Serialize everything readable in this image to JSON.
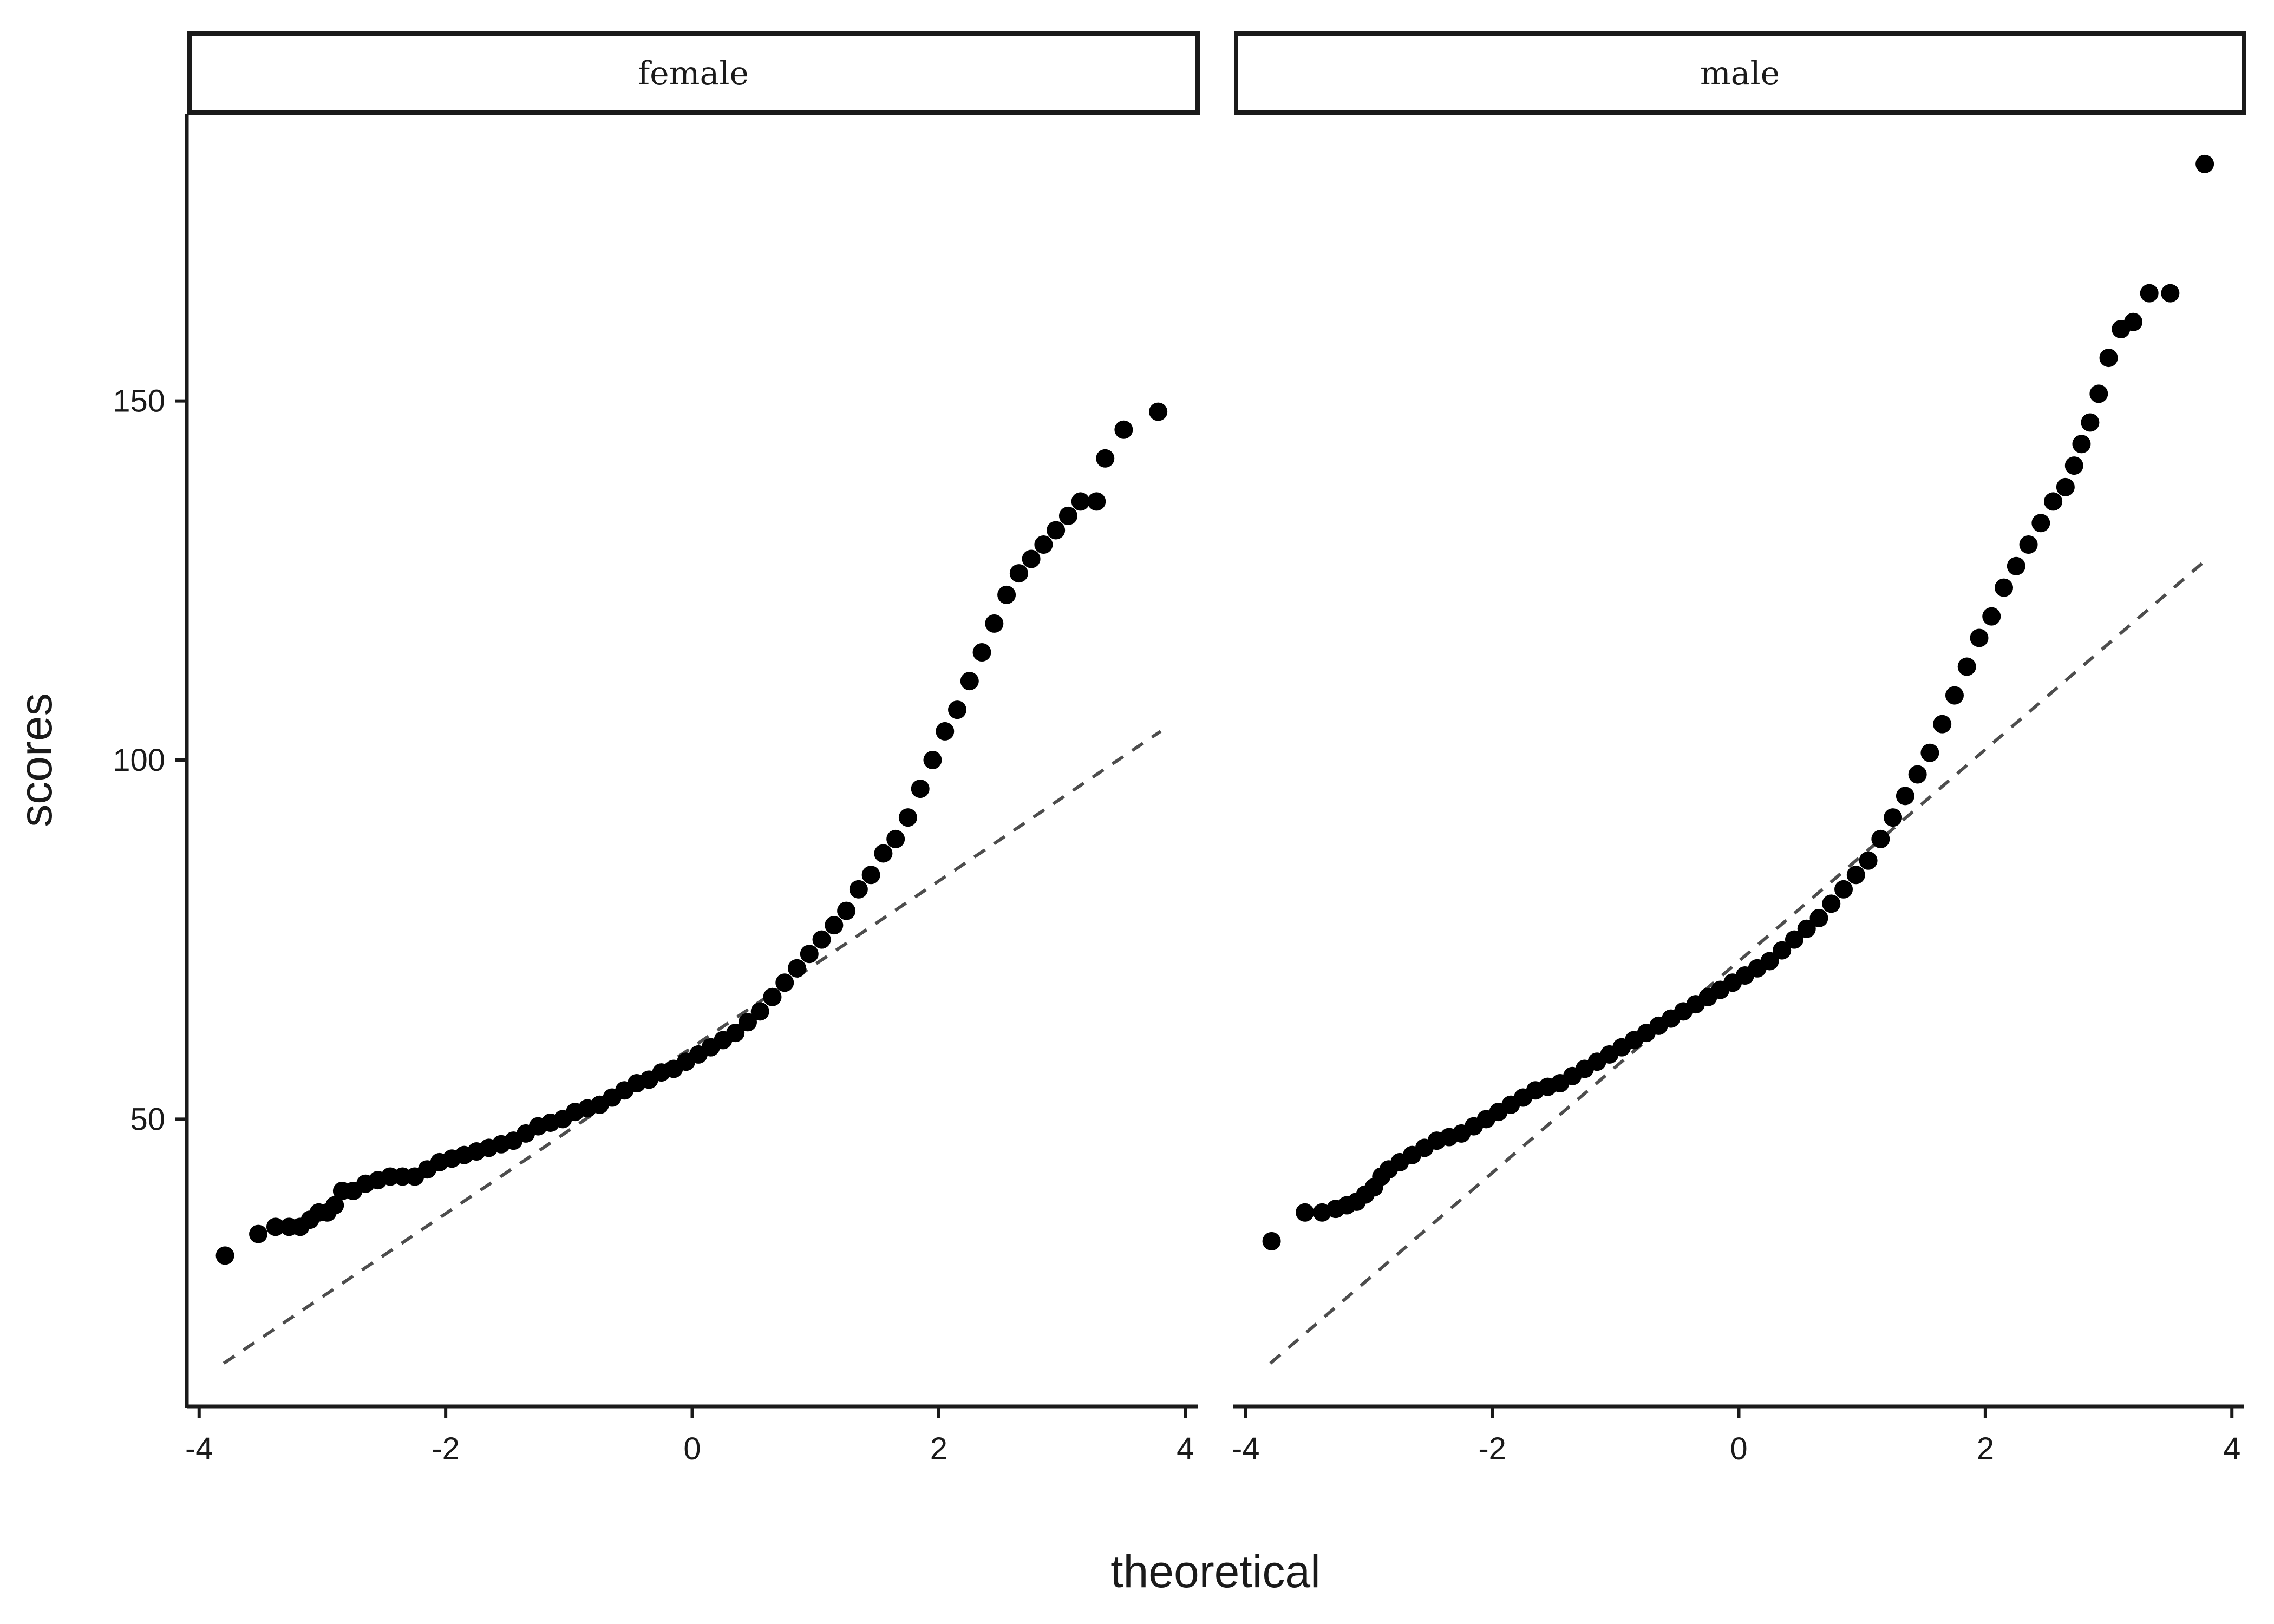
{
  "chart_data": {
    "type": "scatter",
    "subtype": "qq-plot",
    "xlabel": "theoretical",
    "ylabel": "scores",
    "xlim": [
      -4.1,
      4.1
    ],
    "ylim": [
      10,
      190
    ],
    "x_ticks": [
      -4,
      -2,
      0,
      2,
      4
    ],
    "x_tick_labels": [
      "-4",
      "-2",
      "0",
      "2",
      "4"
    ],
    "y_ticks": [
      50,
      100,
      150
    ],
    "y_tick_labels": [
      "50",
      "100",
      "150"
    ],
    "grid": false,
    "panels": [
      {
        "name": "female",
        "strip_label": "female",
        "reference_line": {
          "x": [
            -3.8,
            3.8
          ],
          "y": [
            16,
            104
          ]
        },
        "points": [
          [
            -3.79,
            31
          ],
          [
            -3.52,
            34
          ],
          [
            -3.38,
            35
          ],
          [
            -3.27,
            35
          ],
          [
            -3.18,
            35
          ],
          [
            -3.1,
            36
          ],
          [
            -3.03,
            37
          ],
          [
            -2.96,
            37
          ],
          [
            -2.9,
            38
          ],
          [
            -2.84,
            40
          ],
          [
            -2.75,
            40
          ],
          [
            -2.65,
            41
          ],
          [
            -2.55,
            41.5
          ],
          [
            -2.45,
            42
          ],
          [
            -2.35,
            42
          ],
          [
            -2.25,
            42
          ],
          [
            -2.15,
            43
          ],
          [
            -2.05,
            44
          ],
          [
            -1.95,
            44.5
          ],
          [
            -1.85,
            45
          ],
          [
            -1.75,
            45.5
          ],
          [
            -1.65,
            46
          ],
          [
            -1.55,
            46.5
          ],
          [
            -1.45,
            47
          ],
          [
            -1.35,
            48
          ],
          [
            -1.25,
            49
          ],
          [
            -1.15,
            49.5
          ],
          [
            -1.05,
            50
          ],
          [
            -0.95,
            51
          ],
          [
            -0.85,
            51.5
          ],
          [
            -0.75,
            52
          ],
          [
            -0.65,
            53
          ],
          [
            -0.55,
            54
          ],
          [
            -0.45,
            55
          ],
          [
            -0.35,
            55.5
          ],
          [
            -0.25,
            56.5
          ],
          [
            -0.15,
            57
          ],
          [
            -0.05,
            58
          ],
          [
            0.05,
            59
          ],
          [
            0.15,
            60
          ],
          [
            0.25,
            61
          ],
          [
            0.35,
            62
          ],
          [
            0.45,
            63.5
          ],
          [
            0.55,
            65
          ],
          [
            0.65,
            67
          ],
          [
            0.75,
            69
          ],
          [
            0.85,
            71
          ],
          [
            0.95,
            73
          ],
          [
            1.05,
            75
          ],
          [
            1.15,
            77
          ],
          [
            1.25,
            79
          ],
          [
            1.35,
            82
          ],
          [
            1.45,
            84
          ],
          [
            1.55,
            87
          ],
          [
            1.65,
            89
          ],
          [
            1.75,
            92
          ],
          [
            1.85,
            96
          ],
          [
            1.95,
            100
          ],
          [
            2.05,
            104
          ],
          [
            2.15,
            107
          ],
          [
            2.25,
            111
          ],
          [
            2.35,
            115
          ],
          [
            2.45,
            119
          ],
          [
            2.55,
            123
          ],
          [
            2.65,
            126
          ],
          [
            2.75,
            128
          ],
          [
            2.85,
            130
          ],
          [
            2.95,
            132
          ],
          [
            3.05,
            134
          ],
          [
            3.15,
            136
          ],
          [
            3.28,
            136
          ],
          [
            3.35,
            142
          ],
          [
            3.5,
            146
          ],
          [
            3.78,
            148.5
          ]
        ]
      },
      {
        "name": "male",
        "strip_label": "male",
        "reference_line": {
          "x": [
            -3.8,
            3.8
          ],
          "y": [
            16,
            128
          ]
        },
        "points": [
          [
            -3.79,
            33
          ],
          [
            -3.52,
            37
          ],
          [
            -3.38,
            37
          ],
          [
            -3.27,
            37.5
          ],
          [
            -3.18,
            38
          ],
          [
            -3.1,
            38.5
          ],
          [
            -3.03,
            39.5
          ],
          [
            -2.96,
            40.5
          ],
          [
            -2.9,
            42
          ],
          [
            -2.84,
            43
          ],
          [
            -2.75,
            44
          ],
          [
            -2.65,
            45
          ],
          [
            -2.55,
            46
          ],
          [
            -2.45,
            47
          ],
          [
            -2.35,
            47.5
          ],
          [
            -2.25,
            48
          ],
          [
            -2.15,
            49
          ],
          [
            -2.05,
            50
          ],
          [
            -1.95,
            51
          ],
          [
            -1.85,
            52
          ],
          [
            -1.75,
            53
          ],
          [
            -1.65,
            54
          ],
          [
            -1.55,
            54.5
          ],
          [
            -1.45,
            55
          ],
          [
            -1.35,
            56
          ],
          [
            -1.25,
            57
          ],
          [
            -1.15,
            58
          ],
          [
            -1.05,
            59
          ],
          [
            -0.95,
            60
          ],
          [
            -0.85,
            61
          ],
          [
            -0.75,
            62
          ],
          [
            -0.65,
            63
          ],
          [
            -0.55,
            64
          ],
          [
            -0.45,
            65
          ],
          [
            -0.35,
            66
          ],
          [
            -0.25,
            67
          ],
          [
            -0.15,
            68
          ],
          [
            -0.05,
            69
          ],
          [
            0.05,
            70
          ],
          [
            0.15,
            71
          ],
          [
            0.25,
            72
          ],
          [
            0.35,
            73.5
          ],
          [
            0.45,
            75
          ],
          [
            0.55,
            76.5
          ],
          [
            0.65,
            78
          ],
          [
            0.75,
            80
          ],
          [
            0.85,
            82
          ],
          [
            0.95,
            84
          ],
          [
            1.05,
            86
          ],
          [
            1.15,
            89
          ],
          [
            1.25,
            92
          ],
          [
            1.35,
            95
          ],
          [
            1.45,
            98
          ],
          [
            1.55,
            101
          ],
          [
            1.65,
            105
          ],
          [
            1.75,
            109
          ],
          [
            1.85,
            113
          ],
          [
            1.95,
            117
          ],
          [
            2.05,
            120
          ],
          [
            2.15,
            124
          ],
          [
            2.25,
            127
          ],
          [
            2.35,
            130
          ],
          [
            2.45,
            133
          ],
          [
            2.55,
            136
          ],
          [
            2.65,
            138
          ],
          [
            2.72,
            141
          ],
          [
            2.78,
            144
          ],
          [
            2.85,
            147
          ],
          [
            2.92,
            151
          ],
          [
            3.0,
            156
          ],
          [
            3.1,
            160
          ],
          [
            3.2,
            161
          ],
          [
            3.33,
            165
          ],
          [
            3.5,
            165
          ],
          [
            3.78,
            183
          ]
        ]
      }
    ]
  }
}
